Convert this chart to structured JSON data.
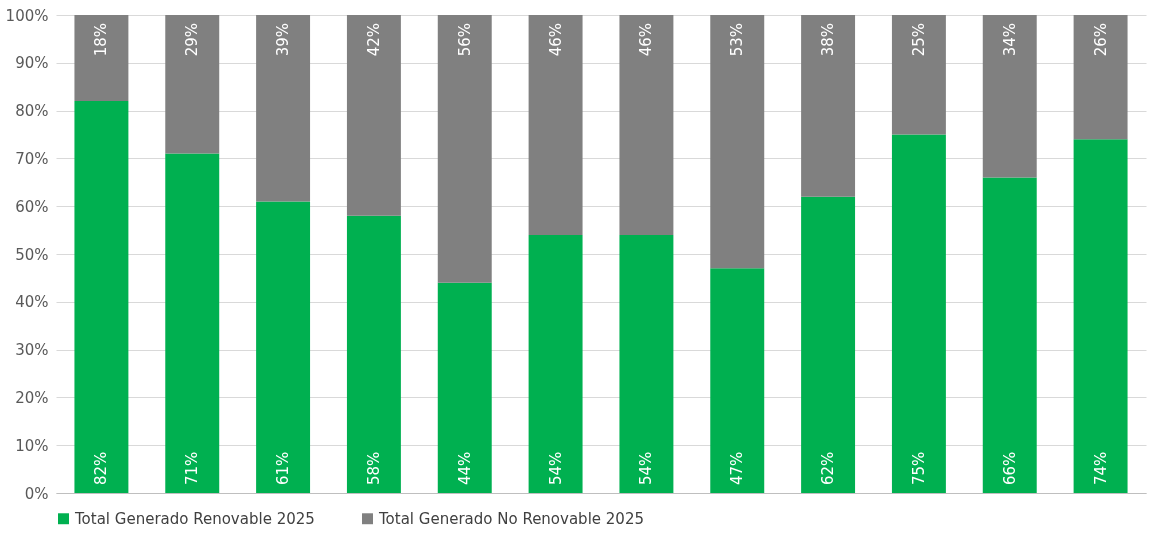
{
  "chart_data": {
    "type": "bar",
    "stacked": true,
    "categories": [
      null,
      null,
      null,
      null,
      null,
      null,
      null,
      null,
      null,
      null,
      null,
      null
    ],
    "series": [
      {
        "name": "Total Generado  Renovable 2025",
        "color": "#00b050",
        "values": [
          82,
          71,
          61,
          58,
          44,
          54,
          54,
          47,
          62,
          75,
          66,
          74
        ],
        "value_labels": [
          "82%",
          "71%",
          "61%",
          "58%",
          "44%",
          "54%",
          "54%",
          "47%",
          "62%",
          "75%",
          "66%",
          "74%"
        ]
      },
      {
        "name": "Total Generado  No Renovable 2025",
        "color": "#808080",
        "values": [
          18,
          29,
          39,
          42,
          56,
          46,
          46,
          53,
          38,
          25,
          34,
          26
        ],
        "value_labels": [
          "18%",
          "29%",
          "39%",
          "42%",
          "56%",
          "46%",
          "46%",
          "53%",
          "38%",
          "25%",
          "34%",
          "26%"
        ]
      }
    ],
    "ylim": [
      0,
      100
    ],
    "yticks": [
      {
        "value": 0,
        "label": "0%"
      },
      {
        "value": 10,
        "label": "10%"
      },
      {
        "value": 20,
        "label": "20%"
      },
      {
        "value": 30,
        "label": "30%"
      },
      {
        "value": 40,
        "label": "40%"
      },
      {
        "value": 50,
        "label": "50%"
      },
      {
        "value": 60,
        "label": "60%"
      },
      {
        "value": 70,
        "label": "70%"
      },
      {
        "value": 80,
        "label": "80%"
      },
      {
        "value": 90,
        "label": "90%"
      },
      {
        "value": 100,
        "label": "100%"
      }
    ],
    "grid": "y",
    "legend": "bottom"
  }
}
